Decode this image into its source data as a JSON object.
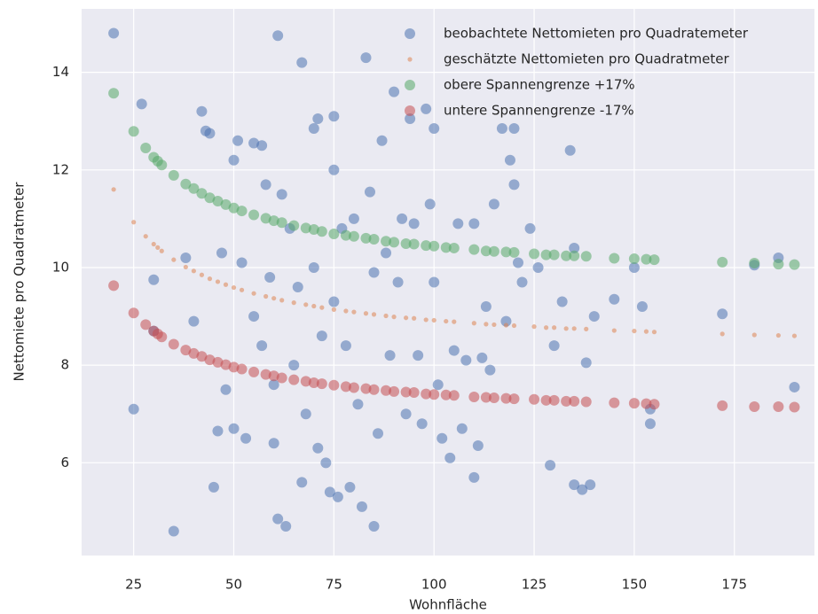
{
  "chart_data": {
    "type": "scatter",
    "xlabel": "Wohnfläche",
    "ylabel": "Nettomiete pro Quadratmeter",
    "xlim": [
      12,
      195
    ],
    "ylim": [
      4.1,
      15.3
    ],
    "xticks": [
      25,
      50,
      75,
      100,
      125,
      150,
      175
    ],
    "yticks": [
      6,
      8,
      10,
      12,
      14
    ],
    "grid": true,
    "legend": "upper right",
    "series": [
      {
        "name": "beobachtete Nettomieten pro Quadratemeter",
        "color": "#4c72b0",
        "marker": "o",
        "x": [
          20,
          25,
          27,
          30,
          30,
          35,
          38,
          40,
          42,
          43,
          44,
          45,
          46,
          47,
          48,
          50,
          50,
          51,
          52,
          53,
          55,
          55,
          57,
          57,
          58,
          59,
          60,
          60,
          61,
          61,
          62,
          63,
          64,
          65,
          66,
          67,
          67,
          68,
          70,
          70,
          71,
          71,
          72,
          73,
          74,
          75,
          75,
          75,
          76,
          77,
          78,
          79,
          80,
          81,
          82,
          83,
          84,
          85,
          85,
          86,
          87,
          88,
          89,
          90,
          91,
          92,
          93,
          94,
          95,
          96,
          97,
          98,
          99,
          100,
          100,
          101,
          102,
          104,
          105,
          106,
          107,
          108,
          110,
          110,
          111,
          112,
          113,
          114,
          115,
          117,
          118,
          119,
          120,
          120,
          121,
          122,
          124,
          126,
          129,
          130,
          132,
          134,
          135,
          135,
          137,
          138,
          139,
          140,
          145,
          150,
          152,
          154,
          154,
          172,
          180,
          186,
          190
        ],
        "values": [
          14.8,
          7.1,
          13.35,
          9.75,
          8.7,
          4.6,
          10.2,
          8.9,
          13.2,
          12.8,
          12.75,
          5.5,
          6.65,
          10.3,
          7.5,
          12.2,
          6.7,
          12.6,
          10.1,
          6.5,
          12.55,
          9.0,
          12.5,
          8.4,
          11.7,
          9.8,
          7.6,
          6.4,
          14.75,
          4.85,
          11.5,
          4.7,
          10.8,
          8.0,
          9.6,
          14.2,
          5.6,
          7.0,
          12.85,
          10.0,
          13.05,
          6.3,
          8.6,
          6.0,
          5.4,
          13.1,
          12.0,
          9.3,
          5.3,
          10.8,
          8.4,
          5.5,
          11.0,
          7.2,
          5.1,
          14.3,
          11.55,
          4.7,
          9.9,
          6.6,
          12.6,
          10.3,
          8.2,
          13.6,
          9.7,
          11.0,
          7.0,
          13.05,
          10.9,
          8.2,
          6.8,
          13.25,
          11.3,
          12.85,
          9.7,
          7.6,
          6.5,
          6.1,
          8.3,
          10.9,
          6.7,
          8.1,
          10.9,
          5.7,
          6.35,
          8.15,
          9.2,
          7.9,
          11.3,
          12.85,
          8.9,
          12.2,
          12.85,
          11.7,
          10.1,
          9.7,
          10.8,
          10.0,
          5.95,
          8.4,
          9.3,
          12.4,
          10.4,
          5.55,
          5.45,
          8.05,
          5.55,
          9.0,
          9.35,
          10.0,
          9.2,
          7.1,
          6.8,
          9.05,
          10.05,
          10.2,
          7.55
        ]
      },
      {
        "name": "geschätzte Nettomieten pro Quadratmeter",
        "color": "#dd8452",
        "marker": ".",
        "x": [
          20,
          25,
          28,
          30,
          31,
          32,
          35,
          38,
          40,
          42,
          44,
          46,
          48,
          50,
          52,
          55,
          58,
          60,
          62,
          65,
          68,
          70,
          72,
          75,
          78,
          80,
          83,
          85,
          88,
          90,
          93,
          95,
          98,
          100,
          103,
          105,
          110,
          113,
          115,
          118,
          120,
          125,
          128,
          130,
          133,
          135,
          138,
          145,
          150,
          153,
          155,
          172,
          180,
          186,
          190
        ],
        "values": [
          11.6,
          10.93,
          10.64,
          10.48,
          10.41,
          10.34,
          10.16,
          10.01,
          9.93,
          9.85,
          9.77,
          9.71,
          9.65,
          9.59,
          9.54,
          9.47,
          9.41,
          9.37,
          9.33,
          9.28,
          9.24,
          9.21,
          9.18,
          9.14,
          9.11,
          9.09,
          9.06,
          9.04,
          9.01,
          8.99,
          8.97,
          8.96,
          8.93,
          8.92,
          8.9,
          8.89,
          8.86,
          8.84,
          8.83,
          8.82,
          8.81,
          8.79,
          8.77,
          8.77,
          8.75,
          8.75,
          8.74,
          8.71,
          8.7,
          8.69,
          8.68,
          8.64,
          8.62,
          8.61,
          8.6
        ]
      },
      {
        "name": "obere Spannengrenze +17%",
        "color": "#55a868",
        "marker": "o",
        "x": [
          20,
          25,
          28,
          30,
          31,
          32,
          35,
          38,
          40,
          42,
          44,
          46,
          48,
          50,
          52,
          55,
          58,
          60,
          62,
          65,
          68,
          70,
          72,
          75,
          78,
          80,
          83,
          85,
          88,
          90,
          93,
          95,
          98,
          100,
          103,
          105,
          110,
          113,
          115,
          118,
          120,
          125,
          128,
          130,
          133,
          135,
          138,
          145,
          150,
          153,
          155,
          172,
          180,
          186,
          190
        ],
        "values": [
          13.57,
          12.79,
          12.45,
          12.26,
          12.18,
          12.1,
          11.89,
          11.71,
          11.62,
          11.52,
          11.43,
          11.36,
          11.29,
          11.22,
          11.16,
          11.08,
          11.01,
          10.96,
          10.92,
          10.86,
          10.81,
          10.78,
          10.74,
          10.69,
          10.66,
          10.64,
          10.6,
          10.58,
          10.54,
          10.52,
          10.49,
          10.48,
          10.45,
          10.44,
          10.41,
          10.4,
          10.37,
          10.34,
          10.33,
          10.32,
          10.31,
          10.28,
          10.26,
          10.26,
          10.24,
          10.24,
          10.23,
          10.19,
          10.18,
          10.17,
          10.16,
          10.11,
          10.09,
          10.07,
          10.06
        ]
      },
      {
        "name": "untere Spannengrenze -17%",
        "color": "#c44e52",
        "marker": "o",
        "x": [
          20,
          25,
          28,
          30,
          31,
          32,
          35,
          38,
          40,
          42,
          44,
          46,
          48,
          50,
          52,
          55,
          58,
          60,
          62,
          65,
          68,
          70,
          72,
          75,
          78,
          80,
          83,
          85,
          88,
          90,
          93,
          95,
          98,
          100,
          103,
          105,
          110,
          113,
          115,
          118,
          120,
          125,
          128,
          130,
          133,
          135,
          138,
          145,
          150,
          153,
          155,
          172,
          180,
          186,
          190
        ],
        "values": [
          9.63,
          9.07,
          8.83,
          8.7,
          8.64,
          8.58,
          8.43,
          8.31,
          8.24,
          8.18,
          8.11,
          8.06,
          8.01,
          7.96,
          7.92,
          7.86,
          7.81,
          7.78,
          7.74,
          7.7,
          7.67,
          7.64,
          7.62,
          7.59,
          7.56,
          7.54,
          7.52,
          7.5,
          7.48,
          7.46,
          7.45,
          7.44,
          7.41,
          7.4,
          7.39,
          7.38,
          7.35,
          7.34,
          7.33,
          7.32,
          7.31,
          7.3,
          7.28,
          7.28,
          7.26,
          7.26,
          7.25,
          7.23,
          7.22,
          7.21,
          7.2,
          7.17,
          7.15,
          7.15,
          7.14
        ]
      }
    ]
  }
}
